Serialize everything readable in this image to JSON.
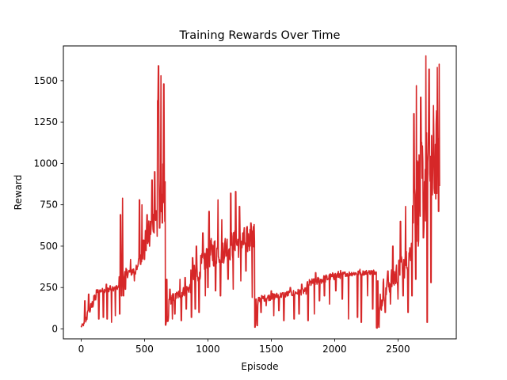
{
  "chart_data": {
    "type": "line",
    "title": "Training Rewards Over Time",
    "xlabel": "Episode",
    "ylabel": "Reward",
    "xlim": [
      -140,
      2960
    ],
    "ylim": [
      -60,
      1710
    ],
    "xticks": [
      0,
      500,
      1000,
      1500,
      2000,
      2500
    ],
    "yticks": [
      0,
      250,
      500,
      750,
      1000,
      1250,
      1500
    ],
    "xtick_labels": [
      "0",
      "500",
      "1000",
      "1500",
      "2000",
      "2500"
    ],
    "ytick_labels": [
      "0",
      "250",
      "500",
      "750",
      "1000",
      "1250",
      "1500"
    ],
    "grid": false,
    "series": [
      {
        "color": "#d62728",
        "segments": [
          {
            "x0": 0,
            "x1": 25,
            "base": 15,
            "base_end": 30,
            "noise": 10,
            "spikes": [],
            "dips": []
          },
          {
            "x0": 25,
            "x1": 120,
            "base": 40,
            "base_end": 200,
            "noise": 30,
            "spikes": [
              [
                30,
                170
              ],
              [
                60,
                210
              ],
              [
                100,
                200
              ]
            ],
            "dips": []
          },
          {
            "x0": 120,
            "x1": 300,
            "base": 225,
            "base_end": 250,
            "noise": 15,
            "spikes": [
              [
                200,
                270
              ],
              [
                230,
                260
              ]
            ],
            "dips": [
              [
                140,
                60
              ],
              [
                175,
                70
              ],
              [
                205,
                60
              ],
              [
                240,
                40
              ],
              [
                270,
                80
              ]
            ]
          },
          {
            "x0": 300,
            "x1": 330,
            "base": 300,
            "base_end": 420,
            "noise": 40,
            "spikes": [
              [
                310,
                690
              ],
              [
                320,
                820
              ],
              [
                327,
                790
              ]
            ],
            "dips": [
              [
                305,
                90
              ],
              [
                320,
                200
              ]
            ]
          },
          {
            "x0": 330,
            "x1": 450,
            "base": 330,
            "base_end": 360,
            "noise": 30,
            "spikes": [
              [
                350,
                450
              ],
              [
                390,
                420
              ]
            ],
            "dips": [
              [
                335,
                200
              ],
              [
                350,
                240
              ],
              [
                420,
                290
              ]
            ]
          },
          {
            "x0": 450,
            "x1": 600,
            "base": 420,
            "base_end": 700,
            "noise": 80,
            "spikes": [
              [
                460,
                780
              ],
              [
                470,
                700
              ],
              [
                480,
                750
              ],
              [
                520,
                690
              ],
              [
                540,
                850
              ],
              [
                560,
                900
              ],
              [
                580,
                950
              ]
            ],
            "dips": [
              [
                470,
                390
              ],
              [
                500,
                420
              ],
              [
                540,
                500
              ]
            ]
          },
          {
            "x0": 600,
            "x1": 665,
            "base": 700,
            "base_end": 950,
            "noise": 130,
            "spikes": [
              [
                595,
                1150
              ],
              [
                605,
                1380
              ],
              [
                610,
                1590
              ],
              [
                618,
                1560
              ],
              [
                630,
                1530
              ],
              [
                640,
                1140
              ],
              [
                652,
                1480
              ],
              [
                660,
                1090
              ]
            ],
            "dips": [
              [
                600,
                560
              ],
              [
                620,
                610
              ],
              [
                640,
                640
              ],
              [
                660,
                650
              ]
            ]
          },
          {
            "x0": 665,
            "x1": 690,
            "base": 10,
            "base_end": 60,
            "noise": 15,
            "spikes": [
              [
                675,
                300
              ]
            ],
            "dips": []
          },
          {
            "x0": 690,
            "x1": 860,
            "base": 170,
            "base_end": 250,
            "noise": 30,
            "spikes": [
              [
                700,
                240
              ],
              [
                780,
                300
              ],
              [
                820,
                310
              ]
            ],
            "dips": [
              [
                690,
                80
              ],
              [
                720,
                60
              ],
              [
                740,
                90
              ],
              [
                790,
                50
              ],
              [
                830,
                120
              ]
            ]
          },
          {
            "x0": 860,
            "x1": 990,
            "base": 280,
            "base_end": 430,
            "noise": 70,
            "spikes": [
              [
                880,
                430
              ],
              [
                910,
                500
              ],
              [
                960,
                580
              ]
            ],
            "dips": [
              [
                870,
                70
              ],
              [
                900,
                120
              ],
              [
                930,
                100
              ],
              [
                980,
                200
              ]
            ]
          },
          {
            "x0": 990,
            "x1": 1370,
            "base": 450,
            "base_end": 550,
            "noise": 90,
            "spikes": [
              [
                1010,
                710
              ],
              [
                1080,
                780
              ],
              [
                1110,
                660
              ],
              [
                1180,
                820
              ],
              [
                1220,
                830
              ],
              [
                1250,
                740
              ],
              [
                1300,
                700
              ],
              [
                1340,
                640
              ]
            ],
            "dips": [
              [
                1000,
                250
              ],
              [
                1060,
                230
              ],
              [
                1100,
                200
              ],
              [
                1160,
                300
              ],
              [
                1200,
                240
              ],
              [
                1260,
                290
              ],
              [
                1300,
                350
              ],
              [
                1350,
                190
              ]
            ]
          },
          {
            "x0": 1370,
            "x1": 1400,
            "base": 30,
            "base_end": 150,
            "noise": 40,
            "spikes": [
              [
                1380,
                180
              ]
            ],
            "dips": [
              [
                1372,
                10
              ],
              [
                1390,
                20
              ]
            ]
          },
          {
            "x0": 1400,
            "x1": 1780,
            "base": 180,
            "base_end": 230,
            "noise": 20,
            "spikes": [
              [
                1500,
                230
              ],
              [
                1650,
                250
              ],
              [
                1740,
                270
              ]
            ],
            "dips": [
              [
                1420,
                100
              ],
              [
                1460,
                140
              ],
              [
                1520,
                80
              ],
              [
                1560,
                110
              ],
              [
                1600,
                50
              ],
              [
                1680,
                60
              ],
              [
                1720,
                90
              ]
            ]
          },
          {
            "x0": 1780,
            "x1": 2050,
            "base": 270,
            "base_end": 330,
            "noise": 25,
            "spikes": [
              [
                1850,
                340
              ],
              [
                2000,
                330
              ]
            ],
            "dips": [
              [
                1790,
                50
              ],
              [
                1840,
                90
              ],
              [
                1880,
                170
              ],
              [
                1920,
                200
              ],
              [
                1960,
                150
              ],
              [
                2010,
                230
              ]
            ]
          },
          {
            "x0": 2050,
            "x1": 2330,
            "base": 330,
            "base_end": 345,
            "noise": 15,
            "spikes": [
              [
                2200,
                360
              ],
              [
                2300,
                360
              ]
            ],
            "dips": [
              [
                2060,
                180
              ],
              [
                2110,
                60
              ],
              [
                2180,
                70
              ],
              [
                2210,
                40
              ],
              [
                2260,
                200
              ],
              [
                2300,
                120
              ]
            ]
          },
          {
            "x0": 2330,
            "x1": 2380,
            "base": 30,
            "base_end": 180,
            "noise": 40,
            "spikes": [
              [
                2340,
                290
              ],
              [
                2360,
                210
              ]
            ],
            "dips": [
              [
                2335,
                5
              ],
              [
                2350,
                10
              ]
            ]
          },
          {
            "x0": 2380,
            "x1": 2600,
            "base": 230,
            "base_end": 430,
            "noise": 80,
            "spikes": [
              [
                2420,
                350
              ],
              [
                2460,
                500
              ],
              [
                2520,
                650
              ],
              [
                2560,
                740
              ],
              [
                2580,
                790
              ]
            ],
            "dips": [
              [
                2400,
                100
              ],
              [
                2440,
                150
              ],
              [
                2500,
                180
              ],
              [
                2540,
                200
              ],
              [
                2580,
                100
              ]
            ]
          },
          {
            "x0": 2600,
            "x1": 2830,
            "base": 700,
            "base_end": 1100,
            "noise": 300,
            "spikes": [
              [
                2625,
                1300
              ],
              [
                2645,
                1470
              ],
              [
                2660,
                1580
              ],
              [
                2680,
                1400
              ],
              [
                2700,
                1640
              ],
              [
                2720,
                1650
              ],
              [
                2745,
                1570
              ],
              [
                2760,
                1480
              ],
              [
                2780,
                1350
              ],
              [
                2790,
                1600
              ],
              [
                2810,
                1580
              ],
              [
                2825,
                1600
              ]
            ],
            "dips": [
              [
                2610,
                200
              ],
              [
                2640,
                300
              ],
              [
                2660,
                500
              ],
              [
                2700,
                550
              ],
              [
                2730,
                40
              ],
              [
                2760,
                280
              ],
              [
                2790,
                820
              ],
              [
                2820,
                710
              ]
            ]
          }
        ]
      }
    ]
  }
}
